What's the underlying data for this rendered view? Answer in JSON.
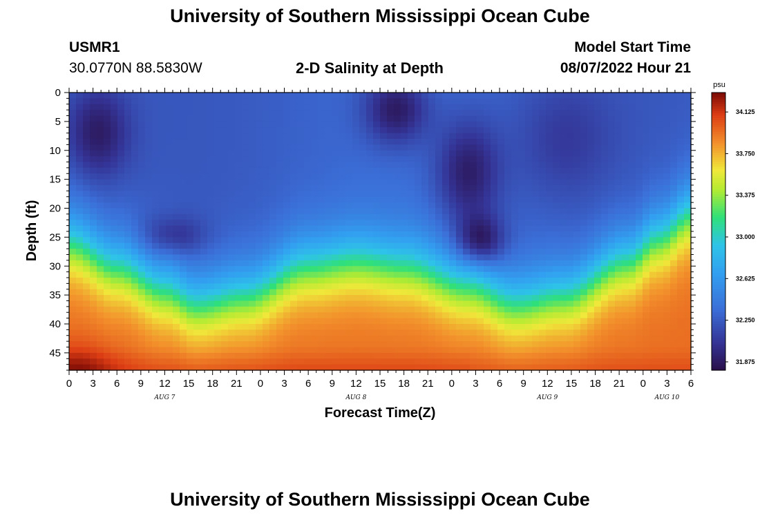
{
  "header": {
    "title": "University of Southern Mississippi Ocean Cube",
    "station": "USMR1",
    "coords": "30.0770N  88.5830W",
    "plot_title": "2-D Salinity at Depth",
    "model_start_label": "Model Start Time",
    "model_start_value": "08/07/2022 Hour 21"
  },
  "footer": {
    "title": "University of Southern Mississippi Ocean Cube"
  },
  "colors": {
    "low": "#2a0f4a",
    "mid_blue": "#3b6fd8",
    "cyan": "#2ec3e8",
    "green": "#2fe07a",
    "yellow": "#f0e83a",
    "orange": "#f28e2b",
    "high": "#7a0a05"
  },
  "chart_data": {
    "type": "heatmap",
    "title": "2-D Salinity at Depth",
    "xlabel": "Forecast Time(Z)",
    "ylabel": "Depth (ft)",
    "x_tick_labels": [
      "0",
      "3",
      "6",
      "9",
      "12",
      "15",
      "18",
      "21",
      "0",
      "3",
      "6",
      "9",
      "12",
      "15",
      "18",
      "21",
      "0",
      "3",
      "6",
      "9",
      "12",
      "15",
      "18",
      "21",
      "0",
      "3",
      "6"
    ],
    "day_labels": [
      {
        "label": "AUG 7",
        "hour": 12
      },
      {
        "label": "AUG 8",
        "hour": 36
      },
      {
        "label": "AUG 9",
        "hour": 60
      },
      {
        "label": "AUG 10",
        "hour": 75
      }
    ],
    "x_hours_range": [
      0,
      78
    ],
    "y_ticks": [
      0,
      5,
      10,
      15,
      20,
      25,
      30,
      35,
      40,
      45
    ],
    "ylim": [
      0,
      48
    ],
    "colorbar": {
      "unit": "psu",
      "ticks": [
        "34.125",
        "33.750",
        "33.375",
        "33.000",
        "32.625",
        "32.250",
        "31.875"
      ],
      "range": [
        31.8,
        34.3
      ]
    },
    "halocline_depth_ft": [
      {
        "hour": 0,
        "depth": 26
      },
      {
        "hour": 6,
        "depth": 30
      },
      {
        "hour": 12,
        "depth": 34
      },
      {
        "hour": 16,
        "depth": 36.5
      },
      {
        "hour": 22,
        "depth": 35
      },
      {
        "hour": 30,
        "depth": 30
      },
      {
        "hour": 36,
        "depth": 29
      },
      {
        "hour": 42,
        "depth": 30
      },
      {
        "hour": 50,
        "depth": 33.5
      },
      {
        "hour": 56,
        "depth": 36.5
      },
      {
        "hour": 62,
        "depth": 35
      },
      {
        "hour": 70,
        "depth": 29
      },
      {
        "hour": 74,
        "depth": 25
      },
      {
        "hour": 78,
        "depth": 21
      }
    ]
  }
}
